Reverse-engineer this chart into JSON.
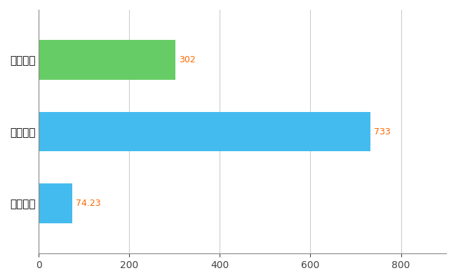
{
  "categories": [
    "全国平均",
    "全国最大",
    "神奈川県"
  ],
  "values": [
    74.23,
    733,
    302
  ],
  "bar_colors": [
    "#44bbee",
    "#44bbee",
    "#66cc66"
  ],
  "value_labels": [
    "74.23",
    "733",
    "302"
  ],
  "xlim": [
    0,
    900
  ],
  "xticks": [
    0,
    200,
    400,
    600,
    800
  ],
  "background_color": "#ffffff",
  "grid_color": "#cccccc",
  "label_color": "#ff6600",
  "bar_height": 0.55
}
